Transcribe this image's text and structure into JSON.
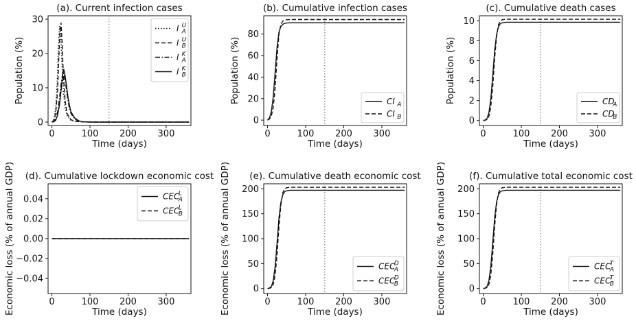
{
  "chart_data": [
    {
      "id": "a",
      "type": "line",
      "title": "(a). Current infection cases",
      "xlabel": "Time (days)",
      "ylabel": "Population (%)",
      "xlim": [
        -10,
        365
      ],
      "ylim": [
        -1,
        31
      ],
      "xticks": [
        0,
        100,
        200,
        300
      ],
      "yticks": [
        0,
        10,
        20,
        30
      ],
      "vline_x": 150,
      "legend_position": "top-right",
      "series": [
        {
          "name": "I_A^U",
          "label": "I",
          "sub": "A",
          "sup": "U",
          "style": "dotted",
          "x": [
            0,
            5,
            10,
            14,
            17,
            20,
            23,
            26,
            30,
            35,
            40,
            50,
            60,
            80,
            100,
            150,
            360
          ],
          "y": [
            0,
            0.8,
            4,
            12,
            22,
            28,
            26,
            18,
            9,
            4,
            1.8,
            0.5,
            0.2,
            0.05,
            0,
            0,
            0
          ]
        },
        {
          "name": "I_B^U",
          "label": "I",
          "sub": "B",
          "sup": "U",
          "style": "dashed",
          "x": [
            0,
            5,
            10,
            15,
            18,
            21,
            24,
            27,
            30,
            35,
            40,
            50,
            60,
            80,
            100,
            150,
            360
          ],
          "y": [
            0,
            0.5,
            2.5,
            9,
            18,
            26,
            29,
            23,
            14,
            6,
            2.5,
            0.7,
            0.2,
            0.05,
            0,
            0,
            0
          ]
        },
        {
          "name": "I_A^K",
          "label": "I",
          "sub": "A",
          "sup": "K",
          "style": "dashdot",
          "x": [
            0,
            5,
            10,
            15,
            20,
            24,
            28,
            31,
            35,
            40,
            45,
            50,
            60,
            70,
            80,
            100,
            150,
            360
          ],
          "y": [
            0,
            0.2,
            1,
            3,
            7,
            11,
            14,
            14.5,
            12,
            8,
            4.5,
            2.5,
            0.8,
            0.3,
            0.1,
            0,
            0,
            0
          ]
        },
        {
          "name": "I_B^K",
          "label": "I",
          "sub": "B",
          "sup": "K",
          "style": "solid",
          "x": [
            0,
            5,
            10,
            15,
            20,
            25,
            28,
            31,
            34,
            38,
            42,
            46,
            50,
            60,
            70,
            80,
            100,
            150,
            360
          ],
          "y": [
            0,
            0.1,
            0.5,
            2,
            5,
            10,
            13.5,
            15.5,
            14,
            11,
            7.5,
            5,
            3,
            1.2,
            0.4,
            0.1,
            0,
            0,
            0
          ]
        }
      ]
    },
    {
      "id": "b",
      "type": "line",
      "title": "(b). Cumulative infection cases",
      "xlabel": "Time (days)",
      "ylabel": "Population (%)",
      "xlim": [
        -10,
        365
      ],
      "ylim": [
        -5,
        97
      ],
      "xticks": [
        0,
        100,
        200,
        300
      ],
      "yticks": [
        0,
        20,
        40,
        60,
        80
      ],
      "vline_x": 150,
      "legend_position": "bottom-right",
      "series": [
        {
          "name": "CI_A",
          "label": "CI",
          "sub": "A",
          "sup": "",
          "style": "solid",
          "x": [
            0,
            5,
            10,
            15,
            20,
            25,
            30,
            35,
            40,
            45,
            50,
            60,
            80,
            100,
            360
          ],
          "y": [
            0,
            2,
            8,
            22,
            45,
            68,
            82,
            87,
            89,
            90,
            90.3,
            90.5,
            90.5,
            90.5,
            90.5
          ]
        },
        {
          "name": "CI_B",
          "label": "CI",
          "sub": "B",
          "sup": "",
          "style": "dashed",
          "x": [
            0,
            5,
            10,
            15,
            20,
            25,
            30,
            35,
            40,
            45,
            50,
            60,
            80,
            100,
            360
          ],
          "y": [
            0,
            1,
            4,
            12,
            30,
            58,
            80,
            89,
            92,
            93,
            93.3,
            93.5,
            93.5,
            93.5,
            93.5
          ]
        }
      ]
    },
    {
      "id": "c",
      "type": "line",
      "title": "(c). Cumulative death cases",
      "xlabel": "Time (days)",
      "ylabel": "Population (%)",
      "xlim": [
        -10,
        365
      ],
      "ylim": [
        -0.5,
        10.5
      ],
      "xticks": [
        0,
        100,
        200,
        300
      ],
      "yticks": [
        0,
        2,
        4,
        6,
        8,
        10
      ],
      "vline_x": 150,
      "legend_position": "bottom-right",
      "series": [
        {
          "name": "CD_A",
          "label": "CD",
          "sub": "A",
          "sup": "",
          "style": "solid",
          "x": [
            0,
            5,
            10,
            15,
            20,
            25,
            30,
            35,
            40,
            45,
            50,
            60,
            80,
            100,
            360
          ],
          "y": [
            0,
            0.05,
            0.2,
            0.8,
            2.2,
            4.5,
            7,
            8.6,
            9.4,
            9.7,
            9.8,
            9.85,
            9.85,
            9.85,
            9.85
          ]
        },
        {
          "name": "CD_B",
          "label": "CD",
          "sub": "B",
          "sup": "",
          "style": "dashed",
          "x": [
            0,
            5,
            10,
            15,
            20,
            25,
            30,
            35,
            40,
            45,
            50,
            60,
            80,
            100,
            360
          ],
          "y": [
            0,
            0.03,
            0.1,
            0.4,
            1.4,
            3.4,
            6.2,
            8.4,
            9.6,
            10,
            10.1,
            10.15,
            10.15,
            10.15,
            10.15
          ]
        }
      ]
    },
    {
      "id": "d",
      "type": "line",
      "title": "(d). Cumulative lockdown economic cost",
      "xlabel": "Time (days)",
      "ylabel": "Economic loss (% of annual GDP)",
      "xlim": [
        -10,
        365
      ],
      "ylim": [
        -0.055,
        0.055
      ],
      "xticks": [
        0,
        100,
        200,
        300
      ],
      "yticks": [
        -0.04,
        -0.02,
        0.0,
        0.02,
        0.04
      ],
      "ytick_labels": [
        "−0.04",
        "−0.02",
        "0.00",
        "0.02",
        "0.04"
      ],
      "vline_x": null,
      "legend_position": "top-right",
      "series": [
        {
          "name": "CEC_A^L",
          "label": "CEC",
          "sub": "A",
          "sup": "L",
          "style": "solid",
          "x": [
            0,
            360
          ],
          "y": [
            0,
            0
          ]
        },
        {
          "name": "CEC_B^L",
          "label": "CEC",
          "sub": "B",
          "sup": "L",
          "style": "dashed",
          "x": [
            0,
            360
          ],
          "y": [
            0,
            0
          ]
        }
      ]
    },
    {
      "id": "e",
      "type": "line",
      "title": "(e). Cumulative death economic cost",
      "xlabel": "Time (days)",
      "ylabel": "Economic loss (% of annual GDP)",
      "xlim": [
        -10,
        365
      ],
      "ylim": [
        -10,
        210
      ],
      "xticks": [
        0,
        100,
        200,
        300
      ],
      "yticks": [
        0,
        50,
        100,
        150,
        200
      ],
      "vline_x": 150,
      "legend_position": "bottom-right",
      "series": [
        {
          "name": "CEC_A^D",
          "label": "CEC",
          "sub": "A",
          "sup": "D",
          "style": "solid",
          "x": [
            0,
            5,
            10,
            15,
            20,
            25,
            30,
            35,
            40,
            45,
            50,
            60,
            80,
            100,
            360
          ],
          "y": [
            0,
            1,
            4,
            16,
            45,
            92,
            142,
            173,
            188,
            194,
            196,
            197,
            197,
            197,
            197
          ]
        },
        {
          "name": "CEC_B^D",
          "label": "CEC",
          "sub": "B",
          "sup": "D",
          "style": "dashed",
          "x": [
            0,
            5,
            10,
            15,
            20,
            25,
            30,
            35,
            40,
            45,
            50,
            60,
            80,
            100,
            360
          ],
          "y": [
            0,
            0.5,
            2,
            8,
            28,
            68,
            124,
            168,
            192,
            200,
            202,
            203,
            203,
            203,
            203
          ]
        }
      ]
    },
    {
      "id": "f",
      "type": "line",
      "title": "(f). Cumulative total economic cost",
      "xlabel": "Time (days)",
      "ylabel": "Economic loss (% of annual GDP)",
      "xlim": [
        -10,
        365
      ],
      "ylim": [
        -10,
        210
      ],
      "xticks": [
        0,
        100,
        200,
        300
      ],
      "yticks": [
        0,
        50,
        100,
        150,
        200
      ],
      "vline_x": 150,
      "legend_position": "bottom-right",
      "series": [
        {
          "name": "CEC_A^T",
          "label": "CEC",
          "sub": "A",
          "sup": "T",
          "style": "solid",
          "x": [
            0,
            5,
            10,
            15,
            20,
            25,
            30,
            35,
            40,
            45,
            50,
            60,
            80,
            100,
            360
          ],
          "y": [
            0,
            1,
            4,
            16,
            45,
            92,
            142,
            173,
            188,
            194,
            196,
            197,
            197,
            197,
            197
          ]
        },
        {
          "name": "CEC_B^T",
          "label": "CEC",
          "sub": "B",
          "sup": "T",
          "style": "dashed",
          "x": [
            0,
            5,
            10,
            15,
            20,
            25,
            30,
            35,
            40,
            45,
            50,
            60,
            80,
            100,
            360
          ],
          "y": [
            0,
            0.5,
            2,
            8,
            28,
            68,
            124,
            168,
            192,
            200,
            202,
            203,
            203,
            203,
            203
          ]
        }
      ]
    }
  ]
}
